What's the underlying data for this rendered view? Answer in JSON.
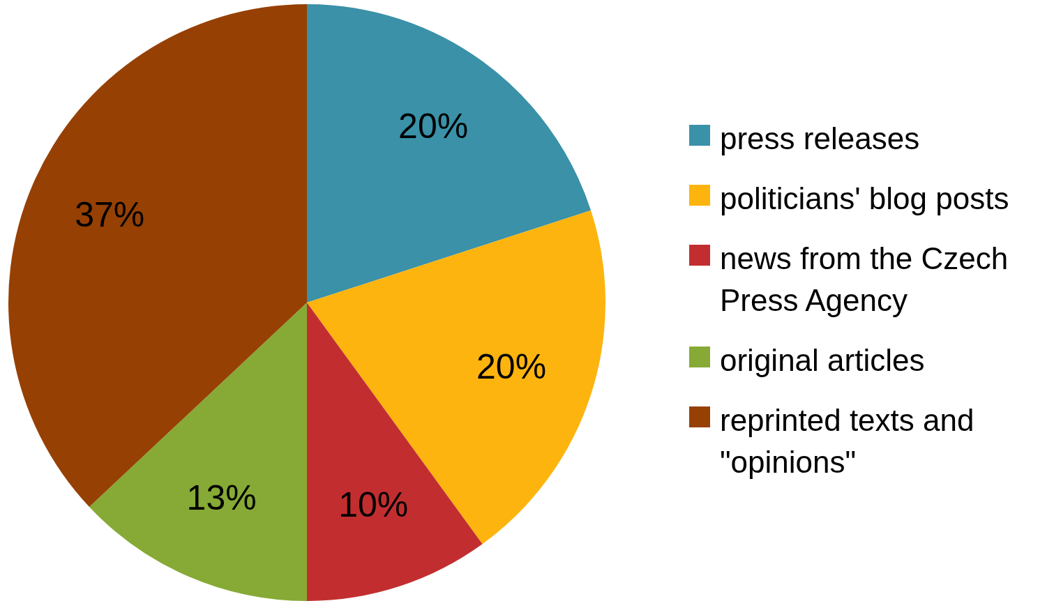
{
  "chart_data": {
    "type": "pie",
    "categories": [
      "press releases",
      "politicians' blog posts",
      "news from the Czech Press Agency",
      "original articles",
      "reprinted texts and \"opinions\""
    ],
    "values": [
      20,
      20,
      10,
      13,
      37
    ],
    "value_labels": [
      "20%",
      "20%",
      "10%",
      "13%",
      "37%"
    ],
    "colors": [
      "#3a91a8",
      "#fdb40e",
      "#c22e2f",
      "#86aa35",
      "#964004"
    ],
    "legend": "right"
  }
}
